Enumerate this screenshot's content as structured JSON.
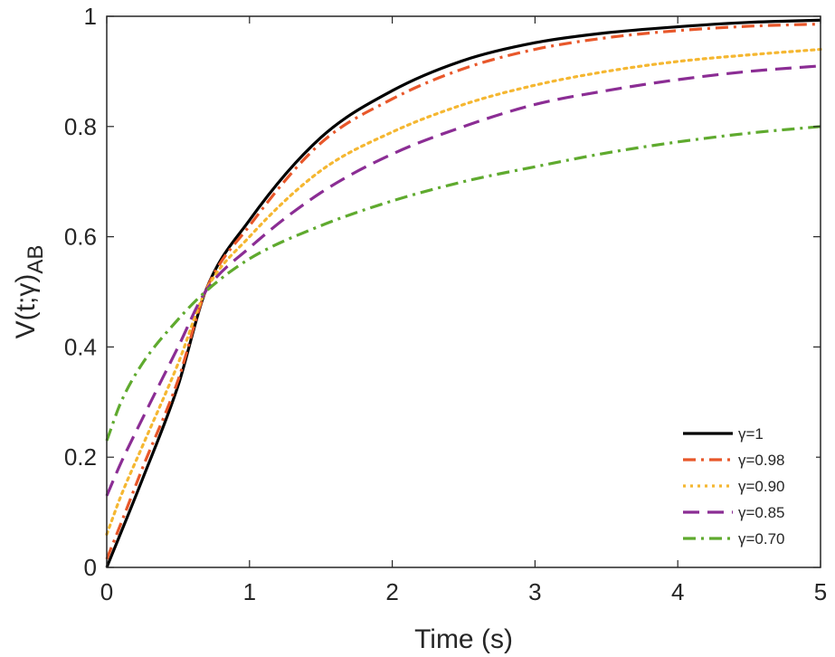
{
  "chart_data": {
    "type": "line",
    "title": "",
    "xlabel": "Time (s)",
    "ylabel": "V(t;γ)",
    "ylabel_subscript": "AB",
    "xlim": [
      0,
      5
    ],
    "ylim": [
      0,
      1
    ],
    "xticks": [
      "0",
      "1",
      "2",
      "3",
      "4",
      "5"
    ],
    "yticks": [
      "0",
      "0.2",
      "0.4",
      "0.6",
      "0.8",
      "1"
    ],
    "grid": false,
    "legend_position": "bottom-right",
    "series": [
      {
        "name": "γ=1",
        "color": "#000000",
        "dash": "solid",
        "x": [
          0,
          0.25,
          0.5,
          0.69,
          1,
          1.5,
          2,
          2.5,
          3,
          3.5,
          4,
          4.5,
          5
        ],
        "y": [
          0,
          0.16,
          0.33,
          0.5,
          0.63,
          0.78,
          0.865,
          0.92,
          0.952,
          0.97,
          0.981,
          0.989,
          0.993
        ]
      },
      {
        "name": "γ=0.98",
        "color": "#e8572a",
        "dash": "dashdot",
        "x": [
          0,
          0.1,
          0.25,
          0.5,
          0.69,
          1,
          1.5,
          2,
          2.5,
          3,
          3.5,
          4,
          4.5,
          5
        ],
        "y": [
          0.015,
          0.08,
          0.18,
          0.34,
          0.5,
          0.62,
          0.77,
          0.85,
          0.905,
          0.94,
          0.961,
          0.974,
          0.982,
          0.986
        ]
      },
      {
        "name": "γ=0.90",
        "color": "#f5b731",
        "dash": "dotted",
        "x": [
          0,
          0.1,
          0.25,
          0.5,
          0.69,
          1,
          1.5,
          2,
          2.5,
          3,
          3.5,
          4,
          4.5,
          5
        ],
        "y": [
          0.06,
          0.13,
          0.22,
          0.37,
          0.5,
          0.6,
          0.72,
          0.79,
          0.84,
          0.875,
          0.9,
          0.918,
          0.93,
          0.94
        ]
      },
      {
        "name": "γ=0.85",
        "color": "#8b2d94",
        "dash": "dashed",
        "x": [
          0,
          0.1,
          0.25,
          0.5,
          0.69,
          1,
          1.5,
          2,
          2.5,
          3,
          3.5,
          4,
          4.5,
          5
        ],
        "y": [
          0.13,
          0.19,
          0.27,
          0.4,
          0.5,
          0.58,
          0.68,
          0.75,
          0.8,
          0.84,
          0.865,
          0.885,
          0.9,
          0.91
        ]
      },
      {
        "name": "γ=0.70",
        "color": "#5faa2e",
        "dash": "dashdot",
        "x": [
          0,
          0.1,
          0.25,
          0.5,
          0.69,
          1,
          1.5,
          2,
          2.5,
          3,
          3.5,
          4,
          4.5,
          5
        ],
        "y": [
          0.23,
          0.3,
          0.37,
          0.45,
          0.5,
          0.56,
          0.62,
          0.665,
          0.7,
          0.727,
          0.752,
          0.772,
          0.788,
          0.8
        ]
      }
    ]
  }
}
